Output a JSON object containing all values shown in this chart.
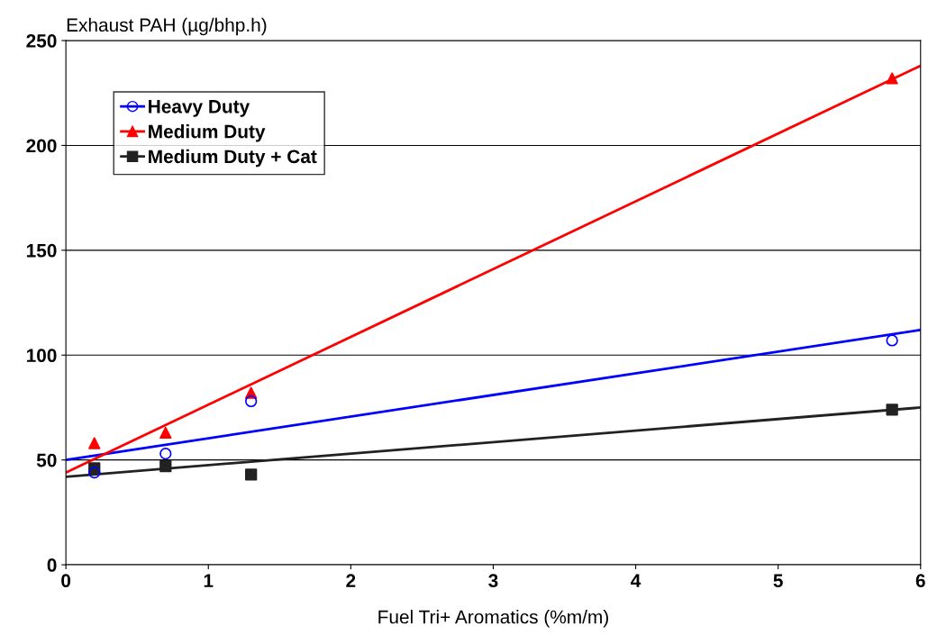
{
  "chart_data": {
    "type": "scatter",
    "xlabel": "Fuel Tri+ Aromatics (%m/m)",
    "ylabel": "Exhaust PAH (µg/bhp.h)",
    "xlim": [
      0,
      6
    ],
    "xticks": [
      0,
      1,
      2,
      3,
      4,
      5,
      6
    ],
    "ylim": [
      0,
      250
    ],
    "yticks": [
      0,
      50,
      100,
      150,
      200,
      250
    ],
    "grid": "y",
    "legend": "top left",
    "series": [
      {
        "name": "Heavy Duty",
        "color": "#0000ff",
        "marker": "circle",
        "x": [
          0.2,
          0.7,
          1.3,
          5.8
        ],
        "values": [
          44,
          53,
          78,
          107
        ]
      },
      {
        "name": "Medium Duty",
        "color": "#ff0000",
        "marker": "triangle",
        "x": [
          0.2,
          0.7,
          1.3,
          5.8
        ],
        "values": [
          58,
          63,
          82,
          232
        ]
      },
      {
        "name": "Medium Duty + Cat",
        "color": "#222222",
        "marker": "square",
        "x": [
          0.2,
          0.7,
          1.3,
          5.8
        ],
        "values": [
          46,
          47,
          43,
          74
        ]
      },
      {
        "type": "line",
        "color": "#0000ff",
        "marker": "none",
        "x": [
          0,
          6
        ],
        "values": [
          50,
          112
        ]
      },
      {
        "type": "line",
        "color": "#ff0000",
        "marker": "none",
        "x": [
          0,
          6
        ],
        "values": [
          44,
          238
        ]
      },
      {
        "type": "line",
        "color": "#222222",
        "marker": "none",
        "x": [
          0,
          6
        ],
        "values": [
          42,
          75
        ]
      }
    ]
  }
}
